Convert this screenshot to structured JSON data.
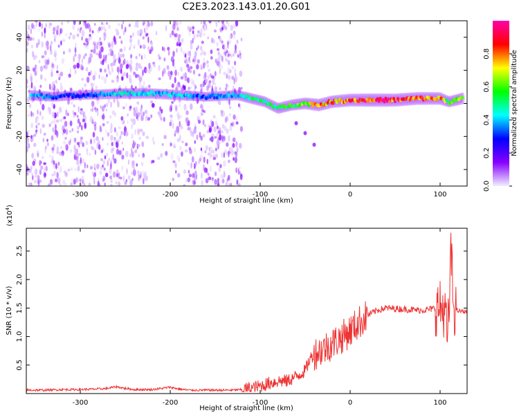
{
  "figure_title": "C2E3.2023.143.01.20.G01",
  "chart_data": [
    {
      "type": "heatmap",
      "title": "",
      "xlabel": "Height of straight line (km)",
      "ylabel": "Frequency (Hz)",
      "xlim": [
        -360,
        130
      ],
      "ylim": [
        -50,
        50
      ],
      "x_ticks": [
        -300,
        -200,
        -100,
        0,
        100
      ],
      "y_ticks": [
        -40,
        -20,
        0,
        20,
        40
      ],
      "colorbar": {
        "label": "Normalized spectral amplitude",
        "range": [
          0,
          1
        ],
        "ticks": [
          "0.0",
          "0.2",
          "0.4",
          "0.6",
          "0.8"
        ],
        "colors": [
          "#f0f0ff",
          "#8800ff",
          "#0000ff",
          "#00ffff",
          "#00ff00",
          "#ffff00",
          "#ff0000",
          "#ff00aa"
        ]
      },
      "features": {
        "noise_region_km": [
          -360,
          -120
        ],
        "gap_km": [
          -220,
          -200
        ],
        "carrier_trace": [
          {
            "x": -355,
            "f": 5,
            "amp": 0.45
          },
          {
            "x": -330,
            "f": 4,
            "amp": 0.35
          },
          {
            "x": -300,
            "f": 5,
            "amp": 0.3
          },
          {
            "x": -250,
            "f": 6,
            "amp": 0.5
          },
          {
            "x": -220,
            "f": 6,
            "amp": 0.45
          },
          {
            "x": -190,
            "f": 5,
            "amp": 0.45
          },
          {
            "x": -160,
            "f": 4,
            "amp": 0.35
          },
          {
            "x": -125,
            "f": 5,
            "amp": 0.45
          },
          {
            "x": -110,
            "f": 3,
            "amp": 0.55
          },
          {
            "x": -95,
            "f": 1,
            "amp": 0.55
          },
          {
            "x": -80,
            "f": -3,
            "amp": 0.6
          },
          {
            "x": -65,
            "f": -1,
            "amp": 0.6
          },
          {
            "x": -50,
            "f": 0,
            "amp": 0.7
          },
          {
            "x": -35,
            "f": -1,
            "amp": 0.85
          },
          {
            "x": -20,
            "f": 1,
            "amp": 0.85
          },
          {
            "x": 0,
            "f": 2,
            "amp": 0.9
          },
          {
            "x": 25,
            "f": 2,
            "amp": 1.0
          },
          {
            "x": 50,
            "f": 2,
            "amp": 0.95
          },
          {
            "x": 75,
            "f": 3,
            "amp": 0.9
          },
          {
            "x": 100,
            "f": 3,
            "amp": 0.85
          },
          {
            "x": 110,
            "f": 1,
            "amp": 0.6
          },
          {
            "x": 125,
            "f": 3,
            "amp": 0.7
          }
        ],
        "branch_trace": [
          {
            "x": -60,
            "f": -12
          },
          {
            "x": -50,
            "f": -18
          },
          {
            "x": -40,
            "f": -25
          }
        ]
      }
    },
    {
      "type": "line",
      "title": "",
      "xlabel": "Height of straight line (km)",
      "ylabel": "SNR (10 * v/v)",
      "y_multiplier": "(x10^4)",
      "y_multiplier_base": "(x10",
      "y_multiplier_exp": "4",
      "y_multiplier_close": ")",
      "xlim": [
        -360,
        130
      ],
      "ylim": [
        0,
        0.29
      ],
      "x_ticks": [
        -300,
        -200,
        -100,
        0,
        100
      ],
      "y_ticks": [
        0.05,
        0.1,
        0.15,
        0.2,
        0.25
      ],
      "y_tick_labels": [
        "0.5",
        "1.0",
        "1.5",
        "2.0",
        "2.5"
      ],
      "color": "#ee3333",
      "series": [
        {
          "x": [
            -360,
            -340,
            -320,
            -300,
            -280,
            -270,
            -260,
            -250,
            -240,
            -220,
            -210,
            -200,
            -190,
            -180,
            -160,
            -140,
            -130,
            -120,
            -110,
            -100,
            -90,
            -80,
            -70,
            -60,
            -50,
            -45,
            -40,
            -30,
            -20,
            -10,
            0,
            10,
            20,
            30,
            40,
            50,
            60,
            70,
            80,
            90,
            95,
            100,
            105,
            108,
            110,
            112,
            115,
            120,
            125,
            130
          ],
          "y": [
            0.006,
            0.006,
            0.007,
            0.007,
            0.008,
            0.009,
            0.012,
            0.009,
            0.007,
            0.007,
            0.009,
            0.011,
            0.008,
            0.006,
            0.006,
            0.006,
            0.006,
            0.007,
            0.009,
            0.013,
            0.018,
            0.022,
            0.022,
            0.03,
            0.04,
            0.06,
            0.07,
            0.078,
            0.088,
            0.098,
            0.11,
            0.125,
            0.138,
            0.146,
            0.15,
            0.149,
            0.148,
            0.147,
            0.146,
            0.148,
            0.15,
            0.15,
            0.148,
            0.1,
            0.14,
            0.25,
            0.15,
            0.145,
            0.144,
            0.144
          ]
        }
      ]
    }
  ]
}
